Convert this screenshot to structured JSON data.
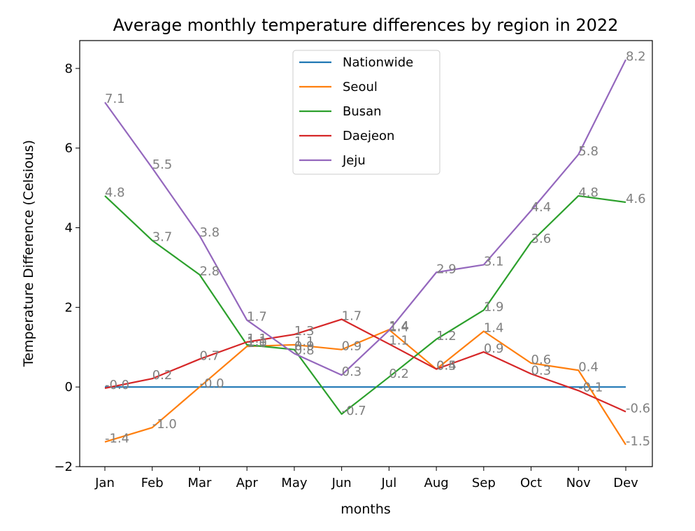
{
  "chart_data": {
    "type": "line",
    "title": "Average monthly temperature differences by region in 2022",
    "xlabel": "months",
    "ylabel": "Temperature Difference (Celsious)",
    "categories": [
      "Jan",
      "Feb",
      "Mar",
      "Apr",
      "May",
      "Jun",
      "Jul",
      "Aug",
      "Sep",
      "Oct",
      "Nov",
      "Dev"
    ],
    "ylim": [
      -2,
      8.7
    ],
    "yticks": [
      -2,
      0,
      2,
      4,
      6,
      8
    ],
    "grid": false,
    "legend_position": "top-center",
    "series": [
      {
        "name": "Nationwide",
        "color": "#1f77b4",
        "values": [
          0,
          0,
          0,
          0,
          0,
          0,
          0,
          0,
          0,
          0,
          0,
          0
        ],
        "labels": []
      },
      {
        "name": "Seoul",
        "color": "#ff7f0e",
        "values": [
          -1.38,
          -1.02,
          0.0,
          1.02,
          1.06,
          0.94,
          1.44,
          0.45,
          1.4,
          0.6,
          0.42,
          -1.45
        ],
        "labels": [
          "-1.4",
          "-1.0",
          "-0.0",
          "1.0",
          "1.1",
          "0.9",
          "1.4",
          "0.5",
          "1.4",
          "0.6",
          "0.4",
          "-1.5"
        ]
      },
      {
        "name": "Busan",
        "color": "#2ca02c",
        "values": [
          4.8,
          3.68,
          2.82,
          1.06,
          0.94,
          -0.68,
          0.25,
          1.2,
          1.93,
          3.64,
          4.8,
          4.64
        ],
        "labels": [
          "4.8",
          "3.7",
          "2.8",
          "1.1",
          "0.9",
          "-0.7",
          "0.2",
          "1.2",
          "1.9",
          "3.6",
          "4.8",
          "4.6"
        ]
      },
      {
        "name": "Daejeon",
        "color": "#d62728",
        "values": [
          -0.03,
          0.21,
          0.7,
          1.13,
          1.32,
          1.7,
          1.08,
          0.45,
          0.88,
          0.33,
          -0.09,
          -0.62
        ],
        "labels": [
          "-0.0",
          "0.2",
          "0.7",
          "1.1",
          "1.3",
          "1.7",
          "1.1",
          "0.4",
          "0.9",
          "0.3",
          "-0.1",
          "-0.6"
        ]
      },
      {
        "name": "Jeju",
        "color": "#9467bd",
        "values": [
          7.15,
          5.5,
          3.8,
          1.68,
          0.84,
          0.3,
          1.42,
          2.88,
          3.07,
          4.43,
          5.84,
          8.22
        ],
        "labels": [
          "7.1",
          "5.5",
          "3.8",
          "1.7",
          "0.8",
          "0.3",
          "1.4",
          "2.9",
          "3.1",
          "4.4",
          "5.8",
          "8.2"
        ]
      }
    ]
  }
}
